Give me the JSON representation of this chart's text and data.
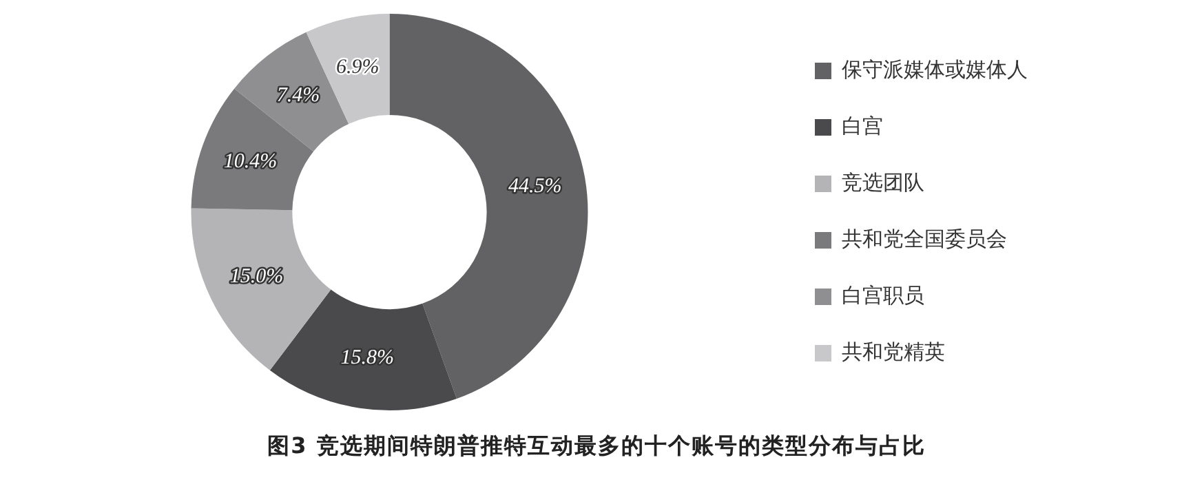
{
  "chart_data": {
    "type": "donut",
    "title": "图3 竞选期间特朗普推特互动最多的十个账号的类型分布与占比",
    "categories": [
      "保守派媒体或媒体人",
      "白宫",
      "竞选团队",
      "共和党全国委员会",
      "白宫职员",
      "共和党精英"
    ],
    "values": [
      44.5,
      15.8,
      15.0,
      10.4,
      7.4,
      6.9
    ],
    "value_labels": [
      "44.5%",
      "15.8%",
      "15.0%",
      "10.4%",
      "7.4%",
      "6.9%"
    ],
    "colors": [
      "#626264",
      "#4a4a4c",
      "#b4b4b6",
      "#7a7a7c",
      "#8f8f91",
      "#c8c8ca"
    ],
    "legend": "right"
  }
}
